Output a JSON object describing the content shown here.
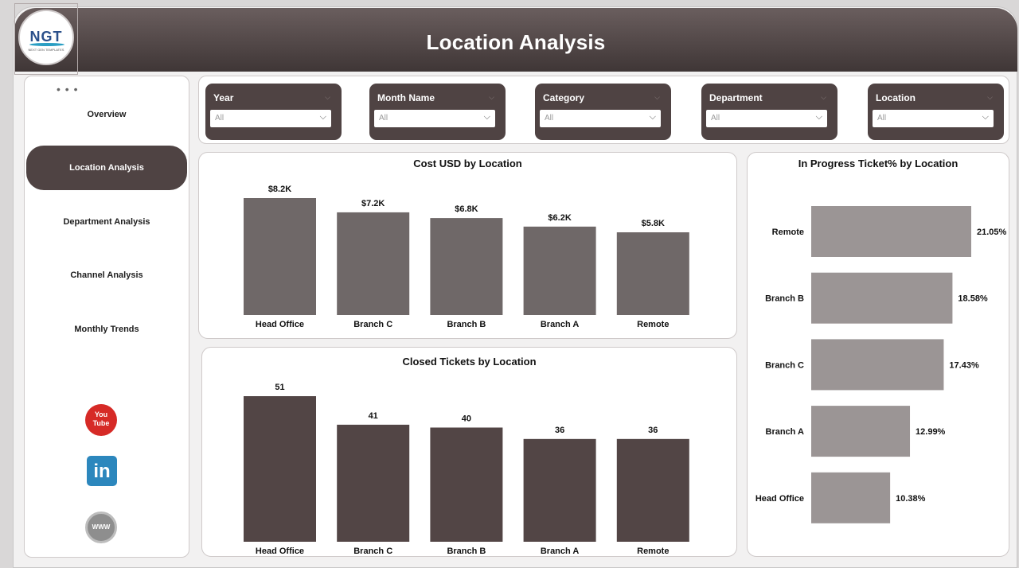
{
  "header": {
    "title": "Location Analysis"
  },
  "logo": {
    "text": "NGT",
    "subtitle": "NEXT GEN TEMPLATES"
  },
  "sidebar": {
    "more_icon": "more-options-icon",
    "items": [
      {
        "label": "Overview",
        "active": false
      },
      {
        "label": "Location Analysis",
        "active": true
      },
      {
        "label": "Department Analysis",
        "active": false
      },
      {
        "label": "Channel Analysis",
        "active": false
      },
      {
        "label": "Monthly Trends",
        "active": false
      }
    ],
    "social": [
      {
        "icon": "youtube-icon",
        "label": "You\nTube"
      },
      {
        "icon": "linkedin-icon",
        "label": "in"
      },
      {
        "icon": "website-icon",
        "label": "WWW"
      }
    ]
  },
  "filters": [
    {
      "label": "Year",
      "value": "All"
    },
    {
      "label": "Month Name",
      "value": "All"
    },
    {
      "label": "Category",
      "value": "All"
    },
    {
      "label": "Department",
      "value": "All"
    },
    {
      "label": "Location",
      "value": "All"
    }
  ],
  "colors": {
    "header_dark": "#3f3636",
    "accent": "#4f4343",
    "cost_bar": "#6f6868",
    "closed_bar": "#524545",
    "progress_bar": "#9b9595"
  },
  "chart_data": [
    {
      "type": "bar",
      "title": "Cost USD by Location",
      "categories": [
        "Head Office",
        "Branch C",
        "Branch B",
        "Branch A",
        "Remote"
      ],
      "values": [
        8.2,
        7.2,
        6.8,
        6.2,
        5.8
      ],
      "data_labels": [
        "$8.2K",
        "$7.2K",
        "$6.8K",
        "$6.2K",
        "$5.8K"
      ],
      "ylim": [
        0,
        8.2
      ]
    },
    {
      "type": "bar",
      "title": "Closed Tickets by Location",
      "categories": [
        "Head Office",
        "Branch C",
        "Branch B",
        "Branch A",
        "Remote"
      ],
      "values": [
        51,
        41,
        40,
        36,
        36
      ],
      "data_labels": [
        "51",
        "41",
        "40",
        "36",
        "36"
      ],
      "ylim": [
        0,
        51
      ]
    },
    {
      "type": "bar",
      "orientation": "horizontal",
      "title": "In Progress Ticket% by Location",
      "categories": [
        "Remote",
        "Branch B",
        "Branch C",
        "Branch A",
        "Head Office"
      ],
      "values": [
        21.05,
        18.58,
        17.43,
        12.99,
        10.38
      ],
      "data_labels": [
        "21.05%",
        "18.58%",
        "17.43%",
        "12.99%",
        "10.38%"
      ],
      "xlim": [
        0,
        21.05
      ]
    }
  ]
}
